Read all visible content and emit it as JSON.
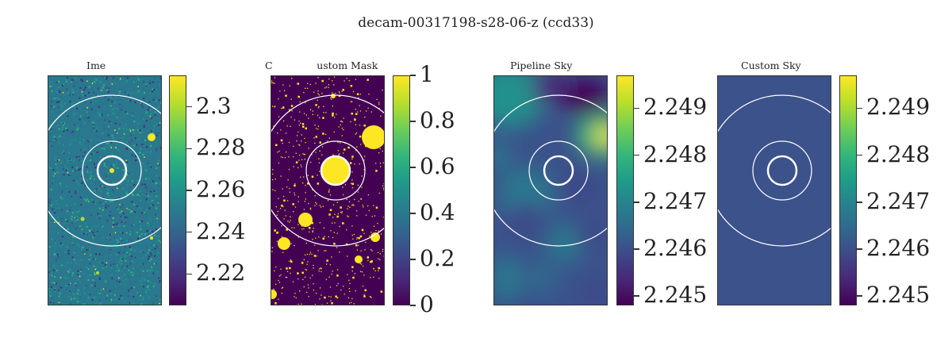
{
  "figure": {
    "title": "decam-00317198-s28-06-z (ccd33)"
  },
  "chart_data": [
    {
      "type": "heatmap",
      "title": "Ime",
      "colormap": "viridis",
      "colorbar": {
        "range": [
          2.205,
          2.315
        ],
        "ticks": [
          2.22,
          2.24,
          2.26,
          2.28,
          2.3
        ],
        "tick_labels": [
          "2.22",
          "2.24",
          "2.26",
          "2.28",
          "2.3"
        ]
      },
      "overlays": [
        "inner-ring",
        "middle-ring",
        "outer-ring"
      ]
    },
    {
      "type": "heatmap",
      "title": "C              ustom Mask",
      "colormap": "viridis",
      "colorbar": {
        "range": [
          0,
          1
        ],
        "ticks": [
          0,
          0.2,
          0.4,
          0.6,
          0.8,
          1
        ],
        "tick_labels": [
          "0",
          "0.2",
          "0.4",
          "0.6",
          "0.8",
          "1"
        ]
      },
      "overlays": [
        "inner-ring",
        "middle-ring",
        "outer-ring"
      ]
    },
    {
      "type": "heatmap",
      "title": "Pipeline Sky",
      "colormap": "viridis",
      "colorbar": {
        "range": [
          2.2448,
          2.2497
        ],
        "ticks": [
          2.245,
          2.246,
          2.247,
          2.248,
          2.249
        ],
        "tick_labels": [
          "2.245",
          "2.246",
          "2.247",
          "2.248",
          "2.249"
        ]
      },
      "overlays": [
        "inner-ring",
        "middle-ring",
        "outer-ring"
      ]
    },
    {
      "type": "heatmap",
      "title": "Custom Sky",
      "colormap": "viridis",
      "constant_value": 2.2462,
      "colorbar": {
        "range": [
          2.2448,
          2.2497
        ],
        "ticks": [
          2.245,
          2.246,
          2.247,
          2.248,
          2.249
        ],
        "tick_labels": [
          "2.245",
          "2.246",
          "2.247",
          "2.248",
          "2.249"
        ]
      },
      "overlays": [
        "inner-ring",
        "middle-ring",
        "outer-ring"
      ]
    }
  ]
}
